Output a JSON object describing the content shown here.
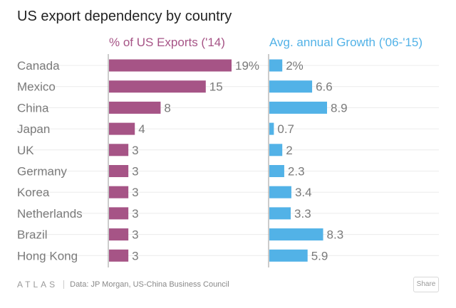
{
  "header": {
    "title": "US export dependency by country"
  },
  "colors": {
    "exports_bar": "#a65486",
    "growth_bar": "#52b2e7",
    "grid": "#ececec",
    "axis": "#9a9a9a"
  },
  "chart_data": [
    {
      "type": "bar",
      "orientation": "horizontal",
      "title": "% of US Exports ('14)",
      "categories": [
        "Canada",
        "Mexico",
        "China",
        "Japan",
        "UK",
        "Germany",
        "Korea",
        "Netherlands",
        "Brazil",
        "Hong Kong"
      ],
      "values": [
        19,
        15,
        8,
        4,
        3,
        3,
        3,
        3,
        3,
        3
      ],
      "value_labels": [
        "19%",
        "15",
        "8",
        "4",
        "3",
        "3",
        "3",
        "3",
        "3",
        "3"
      ],
      "xlim": [
        0,
        20
      ]
    },
    {
      "type": "bar",
      "orientation": "horizontal",
      "title": "Avg. annual Growth ('06-'15)",
      "categories": [
        "Canada",
        "Mexico",
        "China",
        "Japan",
        "UK",
        "Germany",
        "Korea",
        "Netherlands",
        "Brazil",
        "Hong Kong"
      ],
      "values": [
        2,
        6.6,
        8.9,
        0.7,
        2,
        2.3,
        3.4,
        3.3,
        8.3,
        5.9
      ],
      "value_labels": [
        "2%",
        "6.6",
        "8.9",
        "0.7",
        "2",
        "2.3",
        "3.4",
        "3.3",
        "8.3",
        "5.9"
      ],
      "xlim": [
        0,
        10
      ]
    }
  ],
  "footer": {
    "logo": "ATLAS",
    "source": "Data:  JP Morgan, US-China Business Council",
    "share_label": "Share"
  }
}
